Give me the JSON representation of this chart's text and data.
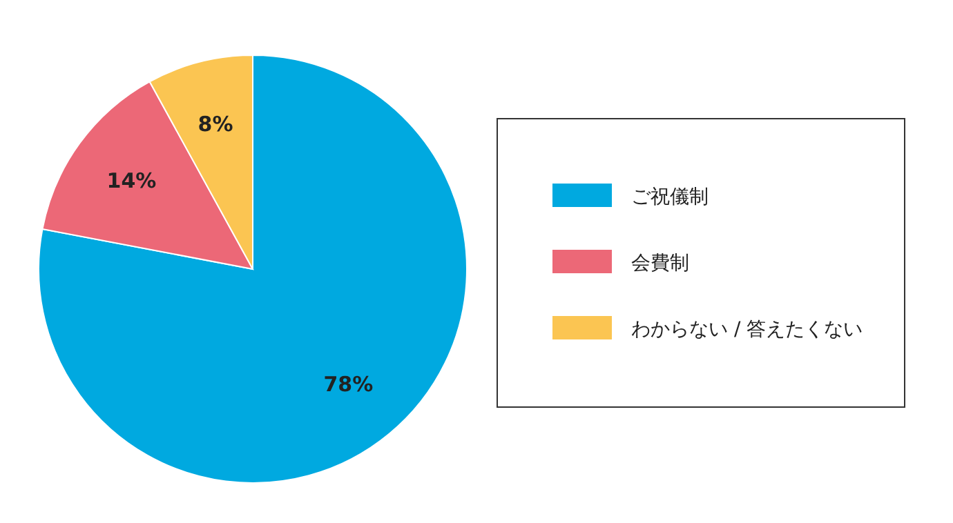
{
  "chart_data": {
    "type": "pie",
    "categories": [
      "ご祝儀制",
      "会費制",
      "わからない / 答えたくない"
    ],
    "values": [
      78,
      14,
      8
    ],
    "colors": [
      "#00a9e0",
      "#ec6877",
      "#fbc552"
    ],
    "value_labels": [
      "78%",
      "14%",
      "8%"
    ],
    "legend": "right"
  }
}
